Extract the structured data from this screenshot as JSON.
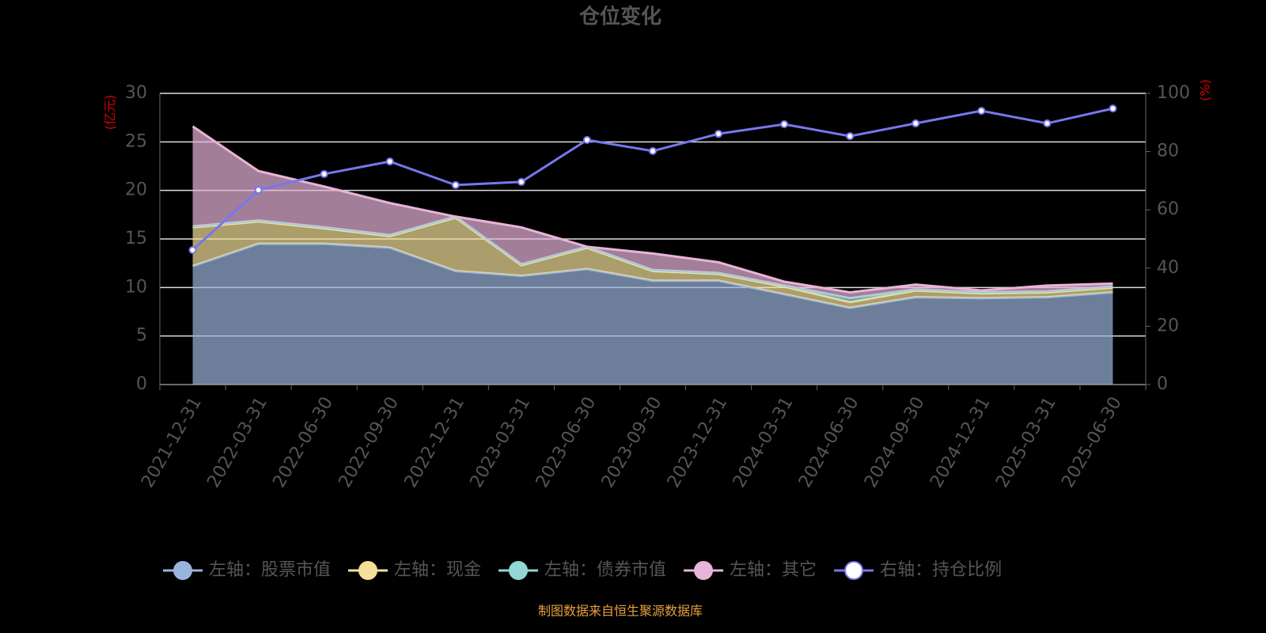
{
  "chart_data": {
    "type": "stacked-area",
    "title": "仓位变化",
    "y_axis_label": "(亿元)",
    "y2_axis_label": "(%)",
    "source": "制图数据来自恒生聚源数据库",
    "categories": [
      "2021-12-31",
      "2022-03-31",
      "2022-06-30",
      "2022-09-30",
      "2022-12-31",
      "2023-03-31",
      "2023-06-30",
      "2023-09-30",
      "2023-12-31",
      "2024-03-31",
      "2024-06-30",
      "2024-09-30",
      "2024-12-31",
      "2025-03-31",
      "2025-06-30"
    ],
    "ylim": [
      0,
      30
    ],
    "yticks": [
      0,
      5,
      10,
      15,
      20,
      25,
      30
    ],
    "y2lim": [
      0,
      100
    ],
    "y2ticks": [
      0,
      20,
      40,
      60,
      80,
      100
    ],
    "grid": true,
    "series": [
      {
        "name": "左轴：股票市值",
        "color": "#9ab4dc",
        "values": [
          12.2,
          14.5,
          14.5,
          14.1,
          11.7,
          11.2,
          11.9,
          10.7,
          10.7,
          9.3,
          7.9,
          9.0,
          8.9,
          9.0,
          9.5
        ]
      },
      {
        "name": "左轴：现金",
        "color": "#f5e09a",
        "values": [
          4.0,
          2.3,
          1.6,
          1.2,
          5.5,
          1.1,
          2.2,
          1.0,
          0.7,
          0.8,
          0.6,
          0.7,
          0.5,
          0.5,
          0.5
        ]
      },
      {
        "name": "左轴：债券市值",
        "color": "#94d6d6",
        "values": [
          0.1,
          0.1,
          0.1,
          0.1,
          0.1,
          0.1,
          0.1,
          0.1,
          0.1,
          0.1,
          0.4,
          0.1,
          0.1,
          0.1,
          0.1
        ]
      },
      {
        "name": "左轴：其它",
        "color": "#e8b4d8",
        "values": [
          10.3,
          5.1,
          4.2,
          3.3,
          0,
          3.8,
          0,
          1.7,
          1.1,
          0.4,
          0.6,
          0.5,
          0.2,
          0.6,
          0.3
        ]
      },
      {
        "name": "右轴：持仓比例",
        "color": "#7777ee",
        "axis": "y2",
        "values": [
          46.2,
          66.8,
          72.3,
          76.6,
          68.5,
          69.6,
          84.0,
          80.2,
          86.1,
          89.4,
          85.3,
          89.7,
          94.0,
          89.7,
          94.8
        ]
      }
    ]
  }
}
